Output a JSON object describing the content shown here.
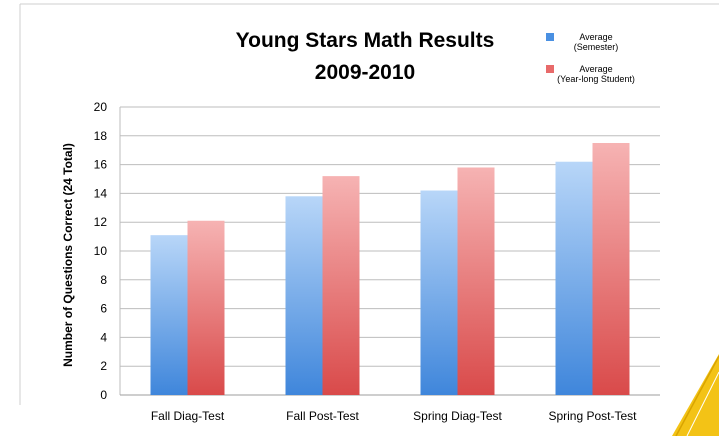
{
  "chart_data": {
    "type": "bar",
    "title": "Young Stars Math Results",
    "subtitle": "2009-2010",
    "xlabel": "",
    "ylabel": "Number of Questions Correct (24 Total)",
    "ylim": [
      0,
      20
    ],
    "yticks": [
      "0",
      "2",
      "4",
      "6",
      "8",
      "10",
      "12",
      "14",
      "16",
      "18",
      "20"
    ],
    "categories": [
      "Fall Diag-Test",
      "Fall Post-Test",
      "Spring Diag-Test",
      "Spring Post-Test"
    ],
    "series": [
      {
        "name": "Average (Semester)",
        "legend_lines": [
          "Average",
          "(Semester)"
        ],
        "color": "#4a90e2",
        "values": [
          11.1,
          13.8,
          14.2,
          16.2
        ]
      },
      {
        "name": "Average (Year-long Student)",
        "legend_lines": [
          "Average",
          "(Year-long Student)"
        ],
        "color": "#e05555",
        "values": [
          12.1,
          15.2,
          15.8,
          17.5
        ]
      }
    ],
    "grid": true,
    "legend_position": "top-right"
  }
}
